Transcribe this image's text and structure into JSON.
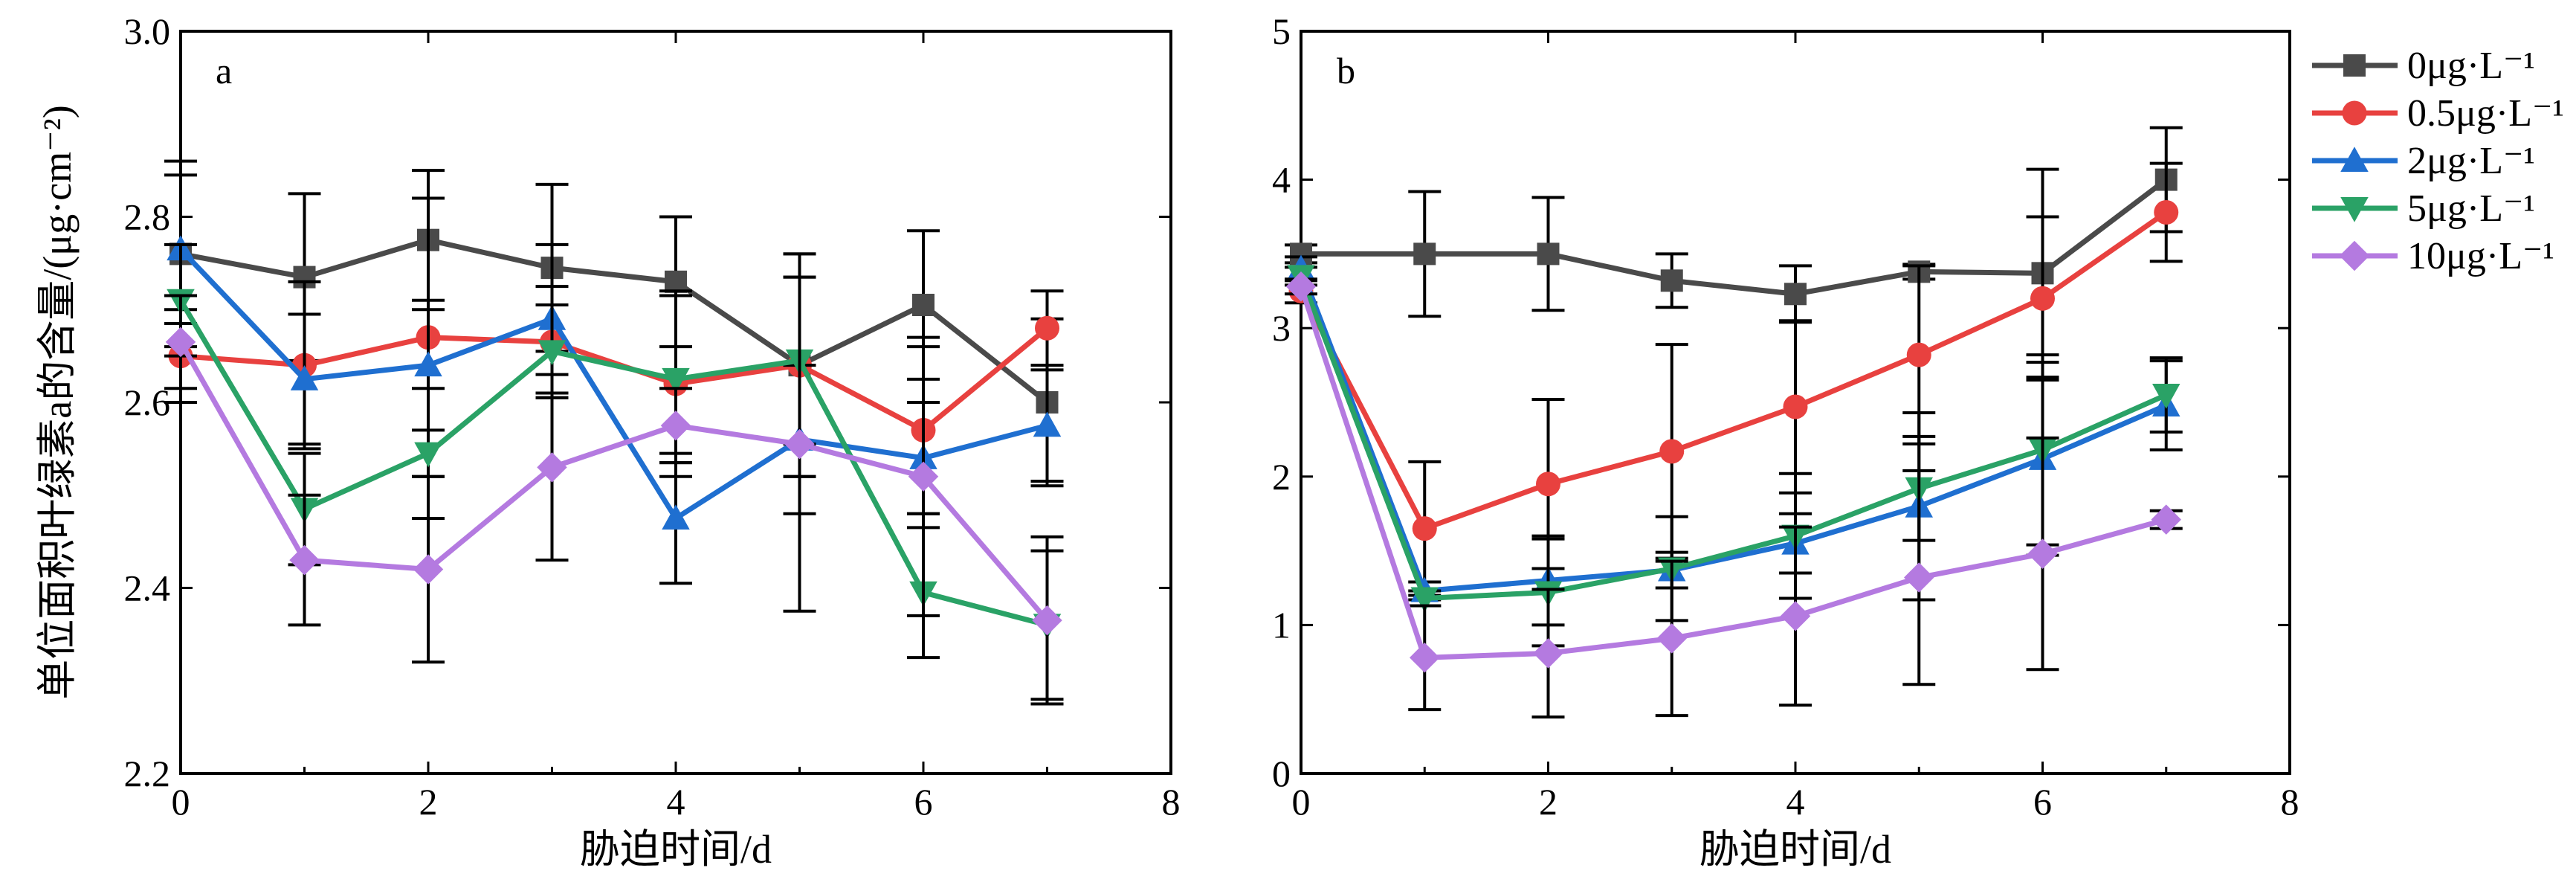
{
  "chart_data": [
    {
      "type": "line",
      "panel": "a",
      "xlabel": "胁迫时间/d",
      "ylabel": "单位面积叶绿素a的含量/(μg·cm⁻²)",
      "xlim": [
        0,
        8
      ],
      "ylim": [
        2.2,
        3.0
      ],
      "xticks": [
        "0",
        "2",
        "4",
        "6",
        "8"
      ],
      "yticks": [
        "2.2",
        "2.4",
        "2.6",
        "2.8",
        "3.0"
      ],
      "x": [
        0,
        1,
        2,
        3,
        4,
        5,
        6,
        7
      ],
      "series": [
        {
          "name": "0μg·L⁻¹",
          "values": [
            2.76,
            2.735,
            2.775,
            2.745,
            2.73,
            2.64,
            2.705,
            2.6
          ],
          "errors": [
            0.1,
            0.09,
            0.075,
            0.09,
            0.07,
            0.12,
            0.08,
            0.09
          ]
        },
        {
          "name": "0.5μg·L⁻¹",
          "values": [
            2.65,
            2.64,
            2.67,
            2.665,
            2.62,
            2.64,
            2.57,
            2.68
          ],
          "errors": [
            0.05,
            0.09,
            0.15,
            0.06,
            0.1,
            0.12,
            0.09,
            0.04
          ]
        },
        {
          "name": "2μg·L⁻¹",
          "values": [
            2.765,
            2.625,
            2.64,
            2.69,
            2.475,
            2.56,
            2.54,
            2.575
          ],
          "errors": [
            0.08,
            0.07,
            0.07,
            0.08,
            0.07,
            0.08,
            0.06,
            0.06
          ]
        },
        {
          "name": "5μg·L⁻¹",
          "values": [
            2.71,
            2.485,
            2.545,
            2.655,
            2.625,
            2.645,
            2.395,
            2.36
          ],
          "errors": [
            0.06,
            0.06,
            0.07,
            0.05,
            0.09,
            0.09,
            0.07,
            0.08
          ]
        },
        {
          "name": "10μg·L⁻¹",
          "values": [
            2.665,
            2.43,
            2.42,
            2.53,
            2.575,
            2.555,
            2.52,
            2.365
          ],
          "errors": [
            0.05,
            0.07,
            0.1,
            0.1,
            0.04,
            0.18,
            0.15,
            0.09
          ]
        }
      ]
    },
    {
      "type": "line",
      "panel": "b",
      "xlabel": "胁迫时间/d",
      "ylabel": "",
      "xlim": [
        0,
        8
      ],
      "ylim": [
        0,
        5
      ],
      "xticks": [
        "0",
        "2",
        "4",
        "6",
        "8"
      ],
      "yticks": [
        "0",
        "1",
        "2",
        "3",
        "4",
        "5"
      ],
      "x": [
        0,
        1,
        2,
        3,
        4,
        5,
        6,
        7
      ],
      "series": [
        {
          "name": "0μg·L⁻¹",
          "values": [
            3.5,
            3.5,
            3.5,
            3.32,
            3.23,
            3.38,
            3.37,
            4.0
          ],
          "errors": [
            0.06,
            0.42,
            0.38,
            0.18,
            0.19,
            0.05,
            0.7,
            0.35
          ]
        },
        {
          "name": "0.5μg·L⁻¹",
          "values": [
            3.25,
            1.65,
            1.95,
            2.17,
            2.47,
            2.82,
            3.2,
            3.78
          ],
          "errors": [
            0.08,
            0.45,
            0.57,
            0.72,
            0.58,
            0.6,
            0.55,
            0.33
          ]
        },
        {
          "name": "2μg·L⁻¹",
          "values": [
            3.4,
            1.23,
            1.3,
            1.37,
            1.55,
            1.8,
            2.12,
            2.48
          ],
          "errors": [
            0.08,
            0.06,
            0.3,
            0.12,
            0.2,
            0.63,
            0.65,
            0.3
          ]
        },
        {
          "name": "5μg·L⁻¹",
          "values": [
            3.35,
            1.18,
            1.22,
            1.38,
            1.6,
            1.92,
            2.18,
            2.55
          ],
          "errors": [
            0.06,
            0.05,
            0.36,
            0.35,
            0.42,
            0.35,
            0.64,
            0.25
          ]
        },
        {
          "name": "10μg·L⁻¹",
          "values": [
            3.28,
            0.78,
            0.81,
            0.91,
            1.06,
            1.32,
            1.48,
            1.71
          ],
          "errors": [
            0.05,
            0.35,
            0.43,
            0.52,
            0.6,
            0.72,
            0.78,
            0.06
          ]
        }
      ]
    }
  ],
  "legend": {
    "placement": "right of panel b",
    "entries": [
      {
        "label": "0μg·L⁻¹",
        "color": "#4a4a4a",
        "marker": "square"
      },
      {
        "label": "0.5μg·L⁻¹",
        "color": "#e8413f",
        "marker": "circle"
      },
      {
        "label": "2μg·L⁻¹",
        "color": "#1f6fd0",
        "marker": "triangle-up"
      },
      {
        "label": "5μg·L⁻¹",
        "color": "#2aa266",
        "marker": "triangle-down"
      },
      {
        "label": "10μg·L⁻¹",
        "color": "#b47ae0",
        "marker": "diamond"
      }
    ]
  }
}
